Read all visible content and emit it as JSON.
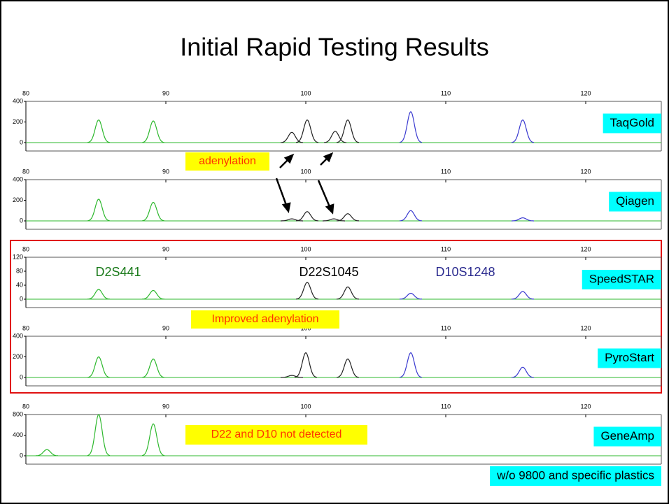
{
  "title": "Initial Rapid Testing Results",
  "annotations": {
    "adenylation": "adenylation",
    "improved": "Improved adenylation",
    "not_detected": "D22 and D10 not detected"
  },
  "loci": [
    {
      "name": "D2S441",
      "color": "#1a7a1a"
    },
    {
      "name": "D22S1045",
      "color": "#000000"
    },
    {
      "name": "D10S1248",
      "color": "#2b2b8f"
    }
  ],
  "chart_data": [
    {
      "type": "peak",
      "name": "TaqGold",
      "xlim": [
        80,
        125.4
      ],
      "xticks": [
        80,
        90,
        100,
        110,
        120
      ],
      "ylim": [
        0,
        400
      ],
      "yticks": [
        0,
        200,
        400
      ],
      "series": [
        {
          "color": "#2db82d",
          "x": [
            85.2,
            89.1
          ],
          "values": [
            220,
            210
          ]
        },
        {
          "color": "#222222",
          "x": [
            99.0,
            100.1,
            102.1,
            103.0
          ],
          "values": [
            100,
            220,
            110,
            220
          ]
        },
        {
          "color": "#3a3ad0",
          "x": [
            107.5,
            115.5
          ],
          "values": [
            300,
            220
          ]
        }
      ]
    },
    {
      "type": "peak",
      "name": "Qiagen",
      "xlim": [
        80,
        125.4
      ],
      "xticks": [
        80,
        90,
        100,
        110,
        120
      ],
      "ylim": [
        0,
        400
      ],
      "yticks": [
        0,
        200,
        400
      ],
      "series": [
        {
          "color": "#2db82d",
          "x": [
            85.2,
            89.1
          ],
          "values": [
            210,
            180
          ]
        },
        {
          "color": "#222222",
          "x": [
            99.0,
            100.1,
            102.0,
            103.0
          ],
          "values": [
            20,
            90,
            20,
            70
          ]
        },
        {
          "color": "#3a3ad0",
          "x": [
            107.5,
            115.5
          ],
          "values": [
            100,
            30
          ]
        }
      ]
    },
    {
      "type": "peak",
      "name": "SpeedSTAR",
      "xlim": [
        80,
        125.4
      ],
      "xticks": [
        80,
        90,
        100,
        110,
        120
      ],
      "ylim": [
        0,
        120
      ],
      "yticks": [
        0,
        40,
        80,
        120
      ],
      "series": [
        {
          "color": "#2db82d",
          "x": [
            85.2,
            89.1
          ],
          "values": [
            28,
            25
          ]
        },
        {
          "color": "#222222",
          "x": [
            100.1,
            103.0
          ],
          "values": [
            48,
            35
          ]
        },
        {
          "color": "#3a3ad0",
          "x": [
            107.5,
            115.5
          ],
          "values": [
            17,
            22
          ]
        }
      ]
    },
    {
      "type": "peak",
      "name": "PyroStart",
      "xlim": [
        80,
        125.4
      ],
      "xticks": [
        80,
        90,
        100,
        110,
        120
      ],
      "ylim": [
        0,
        400
      ],
      "yticks": [
        0,
        200,
        400
      ],
      "series": [
        {
          "color": "#2db82d",
          "x": [
            85.2,
            89.1
          ],
          "values": [
            200,
            180
          ]
        },
        {
          "color": "#222222",
          "x": [
            99.0,
            100.0,
            103.0
          ],
          "values": [
            20,
            240,
            180
          ]
        },
        {
          "color": "#3a3ad0",
          "x": [
            107.5,
            115.5
          ],
          "values": [
            240,
            100
          ]
        }
      ]
    },
    {
      "type": "peak",
      "name": "GeneAmp",
      "note": "w/o 9800 and specific plastics",
      "xlim": [
        80,
        125.4
      ],
      "xticks": [
        80,
        90,
        100,
        110,
        120
      ],
      "ylim": [
        0,
        800
      ],
      "yticks": [
        0,
        400,
        800
      ],
      "series": [
        {
          "color": "#2db82d",
          "x": [
            81.5,
            85.2,
            89.1
          ],
          "values": [
            120,
            800,
            620
          ]
        }
      ]
    }
  ]
}
